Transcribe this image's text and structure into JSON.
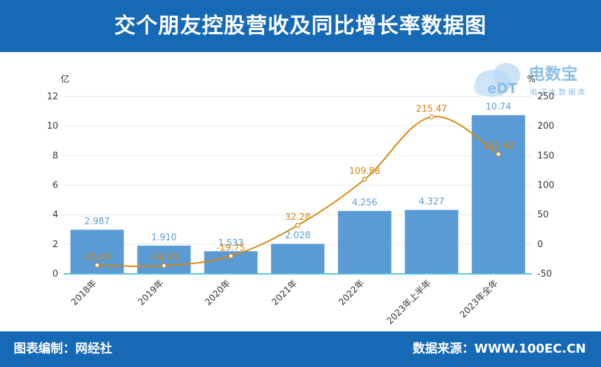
{
  "header": {
    "title": "交个朋友控股营收及同比增长率数据图"
  },
  "footer": {
    "left": "图表编制：网经社",
    "right": "数据来源：WWW.100EC.CN"
  },
  "logo": {
    "text": "电数宝",
    "sub": "电子大数据库",
    "badge": "eDT"
  },
  "colors": {
    "header": "#1669b5",
    "bar": "#5b9bd5",
    "line": "#d4870a",
    "axis": "#56c1e8"
  },
  "chart_data": {
    "type": "bar",
    "categories": [
      "2018年",
      "2019年",
      "2020年",
      "2021年",
      "2022年",
      "2023年上半年",
      "2023年全年"
    ],
    "series": [
      {
        "type": "bar",
        "axis": "left",
        "values": [
          2.987,
          1.91,
          1.533,
          2.028,
          4.256,
          4.327,
          10.74
        ],
        "labels": [
          "2.987",
          "1.910",
          "1.533",
          "2.028",
          "4.256",
          "4.327",
          "10.74"
        ]
      },
      {
        "type": "line",
        "axis": "right",
        "values": [
          -35.45,
          -36.05,
          -19.75,
          32.28,
          109.88,
          215.47,
          152.42
        ],
        "labels": [
          "-35.45",
          "-36.05",
          "-19.75",
          "32.28",
          "109.88",
          "215.47",
          "152.42"
        ]
      }
    ],
    "y_left": {
      "unit": "亿",
      "min": 0,
      "max": 12,
      "ticks": [
        0,
        2,
        4,
        6,
        8,
        10,
        12
      ]
    },
    "y_right": {
      "unit": "%",
      "min": -50,
      "max": 250,
      "ticks": [
        -50,
        0,
        50,
        100,
        150,
        200,
        250
      ]
    },
    "grid": true,
    "legend": "none"
  }
}
